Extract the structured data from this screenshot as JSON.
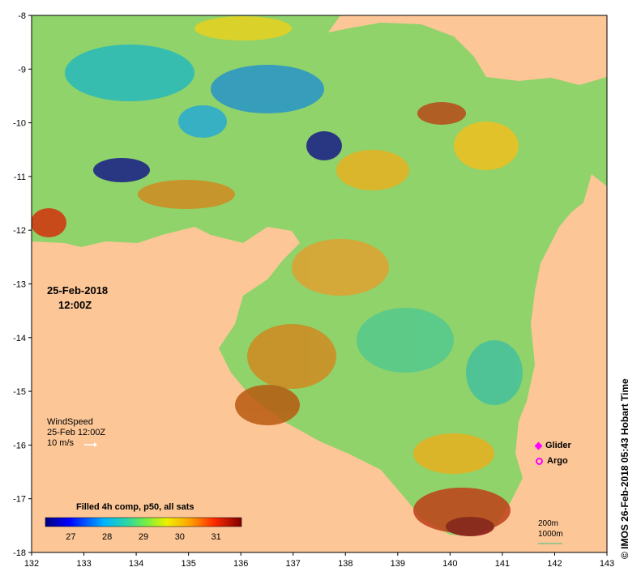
{
  "map": {
    "axes": {
      "x_ticks": [
        "132",
        "133",
        "134",
        "135",
        "136",
        "137",
        "138",
        "139",
        "140",
        "141",
        "142",
        "143"
      ],
      "y_ticks": [
        "-8",
        "-9",
        "-10",
        "-11",
        "-12",
        "-13",
        "-14",
        "-15",
        "-16",
        "-17",
        "-18"
      ],
      "x_range": [
        132,
        143
      ],
      "y_range": [
        -18,
        -8
      ]
    },
    "date": "25-Feb-2018",
    "time": "12:00Z",
    "wind": {
      "title": "WindSpeed",
      "date": "25-Feb 12:00Z",
      "reference": "10 m/s"
    },
    "legend": {
      "glider_label": "Glider",
      "argo_label": "Argo",
      "marker_color": "#ff00ff"
    },
    "colorbar": {
      "title": "Filled 4h comp, p50, all sats",
      "ticks": [
        "27",
        "28",
        "29",
        "30",
        "31"
      ],
      "range": [
        26.3,
        31.7
      ]
    },
    "scale": {
      "line1": "200m",
      "line2": "1000m"
    },
    "credit": "© IMOS 26-Feb-2018 05:43 Hobart Time",
    "colors": {
      "land": "#fcc697",
      "sst_cold": "#00007f",
      "sst_warm": "#7f0000"
    }
  }
}
